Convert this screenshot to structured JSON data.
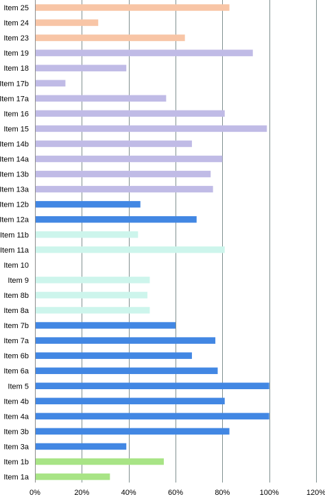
{
  "chart_data": {
    "type": "bar",
    "orientation": "horizontal",
    "categories": [
      "Item 25",
      "Item 24",
      "Item 23",
      "Item 19",
      "Item 18",
      "Item 17b",
      "Item 17a",
      "Item 16",
      "Item 15",
      "Item 14b",
      "Item 14a",
      "Item 13b",
      "Item 13a",
      "Item 12b",
      "Item 12a",
      "Item 11b",
      "Item 11a",
      "Item 10",
      "Item 9",
      "Item 8b",
      "Item 8a",
      "Item 7b",
      "Item 7a",
      "Item 6b",
      "Item 6a",
      "Item 5",
      "Item 4b",
      "Item 4a",
      "Item 3b",
      "Item 3a",
      "Item 1b",
      "Item 1a"
    ],
    "values": [
      83,
      27,
      64,
      93,
      39,
      13,
      56,
      81,
      99,
      67,
      80,
      75,
      76,
      45,
      69,
      44,
      81,
      0,
      49,
      48,
      49,
      60,
      77,
      67,
      78,
      100,
      81,
      100,
      83,
      39,
      55,
      32
    ],
    "colors": [
      "#f8c5a6",
      "#f8c5a6",
      "#f8c5a6",
      "#c0bbe6",
      "#c0bbe6",
      "#c0bbe6",
      "#c0bbe6",
      "#c0bbe6",
      "#c0bbe6",
      "#c0bbe6",
      "#c0bbe6",
      "#c0bbe6",
      "#c0bbe6",
      "#4287e3",
      "#4287e3",
      "#cdf5ec",
      "#cdf5ec",
      "#cdf5ec",
      "#cdf5ec",
      "#cdf5ec",
      "#cdf5ec",
      "#4287e3",
      "#4287e3",
      "#4287e3",
      "#4287e3",
      "#4287e3",
      "#4287e3",
      "#4287e3",
      "#4287e3",
      "#4287e3",
      "#a8e486",
      "#a8e486"
    ],
    "x_ticks": [
      "0%",
      "20%",
      "40%",
      "60%",
      "80%",
      "100%",
      "120%"
    ],
    "xlim": [
      0,
      120
    ],
    "grid": true,
    "title": "",
    "xlabel": "",
    "ylabel": ""
  }
}
